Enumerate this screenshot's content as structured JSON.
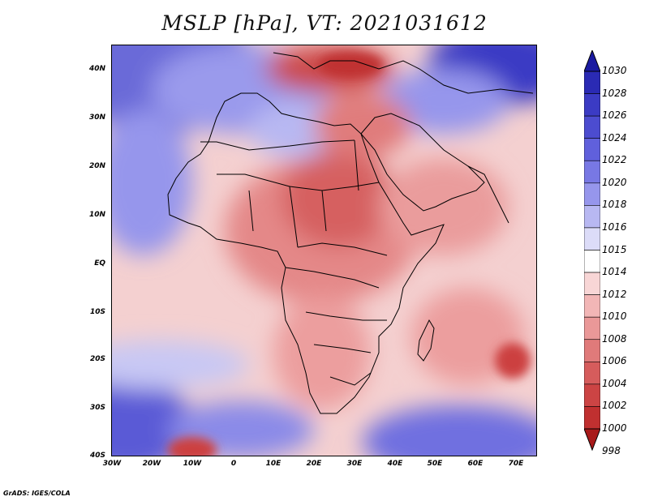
{
  "title": "MSLP [hPa], VT: 2021031612",
  "credit": "GrADS: IGES/COLA",
  "y_axis_labels": [
    "40N",
    "30N",
    "20N",
    "10N",
    "EQ",
    "10S",
    "20S",
    "30S",
    "40S"
  ],
  "x_axis_labels": [
    "30W",
    "20W",
    "10W",
    "0",
    "10E",
    "20E",
    "30E",
    "40E",
    "50E",
    "60E",
    "70E"
  ],
  "colorbar": {
    "labels": [
      "1030",
      "1028",
      "1026",
      "1024",
      "1022",
      "1020",
      "1018",
      "1016",
      "1015",
      "1014",
      "1012",
      "1010",
      "1008",
      "1006",
      "1004",
      "1002",
      "1000",
      "998"
    ],
    "colors": [
      "#1a1aa0",
      "#2a2ab4",
      "#3b3bc4",
      "#4c4cd0",
      "#6060dc",
      "#7878e4",
      "#9696ec",
      "#b8b8f2",
      "#dcdcf8",
      "#ffffff",
      "#f8d6d6",
      "#f2b6b6",
      "#ea9898",
      "#e07a7a",
      "#d65c5c",
      "#cc4444",
      "#c03030",
      "#a81a1a"
    ]
  }
}
